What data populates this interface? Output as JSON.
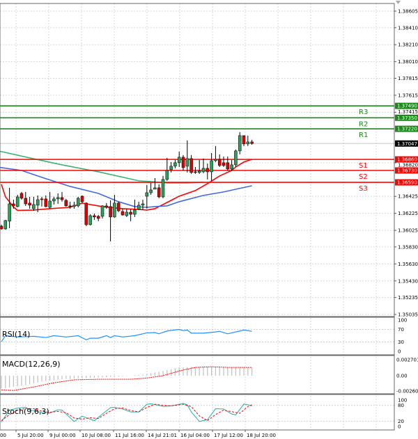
{
  "chart_data": [
    {
      "type": "candlestick",
      "panel": "main",
      "y_ticks": [
        "1.38605",
        "1.38410",
        "1.38210",
        "1.38010",
        "1.37815",
        "1.37615",
        "1.37415",
        "1.36820",
        "1.36425",
        "1.36225",
        "1.36025",
        "1.35830",
        "1.35630",
        "1.35430",
        "1.35235",
        "1.35035"
      ],
      "ylim": [
        1.35035,
        1.38605
      ],
      "x_tick_labels": [
        "00",
        "5 Jul 20:00",
        "9 Jul 00:00",
        "10 Jul 08:00",
        "11 Jul 16:00",
        "14 Jul 21:01",
        "16 Jul 04:00",
        "17 Jul 12:00",
        "18 Jul 20:00"
      ],
      "grid": true,
      "current_price": {
        "label": "1.37047",
        "value": 1.37047,
        "color": "#000000"
      },
      "pivots": [
        {
          "name": "R3",
          "value": 1.3749,
          "label": "1.37490",
          "color": "#1a8a1a"
        },
        {
          "name": "R2",
          "value": 1.3735,
          "label": "1.37350",
          "color": "#1a8a1a"
        },
        {
          "name": "R1",
          "value": 1.3722,
          "label": "1.37220",
          "color": "#1a8a1a"
        },
        {
          "name": "S1",
          "value": 1.3686,
          "label": "1.36860",
          "color": "#ff0000"
        },
        {
          "name": "S2",
          "value": 1.3673,
          "label": "1.36730",
          "color": "#ff0000"
        },
        {
          "name": "S3",
          "value": 1.3659,
          "label": "1.36590",
          "color": "#ff0000"
        }
      ],
      "ohlc": [
        [
          1.36075,
          1.36092,
          1.36034,
          1.36042
        ],
        [
          1.36042,
          1.36149,
          1.36034,
          1.36141
        ],
        [
          1.36133,
          1.36526,
          1.36051,
          1.36337
        ],
        [
          1.36337,
          1.36386,
          1.3628,
          1.36313
        ],
        [
          1.36305,
          1.36444,
          1.36296,
          1.36419
        ],
        [
          1.3646,
          1.36477,
          1.36386,
          1.36403
        ],
        [
          1.36403,
          1.36477,
          1.36313,
          1.36337
        ],
        [
          1.36346,
          1.36419,
          1.3628,
          1.36321
        ],
        [
          1.3628,
          1.36419,
          1.36255,
          1.36329
        ],
        [
          1.36321,
          1.36436,
          1.36239,
          1.36386
        ],
        [
          1.36395,
          1.36419,
          1.36305,
          1.36386
        ],
        [
          1.36395,
          1.36436,
          1.36296,
          1.36305
        ],
        [
          1.36296,
          1.36477,
          1.3628,
          1.3637
        ],
        [
          1.3637,
          1.36419,
          1.36329,
          1.36395
        ],
        [
          1.36395,
          1.3646,
          1.36337,
          1.36411
        ],
        [
          1.36411,
          1.36477,
          1.36362,
          1.36386
        ],
        [
          1.36378,
          1.36395,
          1.36305,
          1.36313
        ],
        [
          1.36313,
          1.36362,
          1.3628,
          1.36305
        ],
        [
          1.36305,
          1.36362,
          1.3628,
          1.36321
        ],
        [
          1.36313,
          1.36419,
          1.36296,
          1.36403
        ],
        [
          1.36427,
          1.36436,
          1.36346,
          1.36362
        ],
        [
          1.36346,
          1.36354,
          1.36075,
          1.36092
        ],
        [
          1.36092,
          1.36214,
          1.36083,
          1.36198
        ],
        [
          1.36198,
          1.36223,
          1.36149,
          1.36182
        ],
        [
          1.3619,
          1.36206,
          1.36133,
          1.36165
        ],
        [
          1.3619,
          1.36321,
          1.36165,
          1.36313
        ],
        [
          1.36313,
          1.36346,
          1.3628,
          1.36296
        ],
        [
          1.36305,
          1.36378,
          1.35895,
          1.36182
        ],
        [
          1.36182,
          1.36444,
          1.36174,
          1.36346
        ],
        [
          1.36346,
          1.36362,
          1.36239,
          1.36255
        ],
        [
          1.36247,
          1.3628,
          1.36198,
          1.36206
        ],
        [
          1.36198,
          1.3628,
          1.36182,
          1.36239
        ],
        [
          1.36239,
          1.3628,
          1.36133,
          1.36214
        ],
        [
          1.36214,
          1.36386,
          1.36182,
          1.36264
        ],
        [
          1.36272,
          1.36362,
          1.36264,
          1.36321
        ],
        [
          1.36321,
          1.36386,
          1.36264,
          1.36337
        ],
        [
          1.36427,
          1.36558,
          1.3628,
          1.36468
        ],
        [
          1.36468,
          1.36583,
          1.36444,
          1.36501
        ],
        [
          1.36509,
          1.3664,
          1.36509,
          1.36526
        ],
        [
          1.36526,
          1.36567,
          1.36403,
          1.36419
        ],
        [
          1.36419,
          1.36665,
          1.36403,
          1.36624
        ],
        [
          1.36624,
          1.36878,
          1.36608,
          1.3673
        ],
        [
          1.36739,
          1.36829,
          1.36706,
          1.3678
        ],
        [
          1.3678,
          1.36853,
          1.36755,
          1.36821
        ],
        [
          1.36821,
          1.36952,
          1.36771,
          1.36886
        ],
        [
          1.36886,
          1.36911,
          1.3673,
          1.36763
        ],
        [
          1.3678,
          1.37083,
          1.36706,
          1.3687
        ],
        [
          1.3687,
          1.36911,
          1.3669,
          1.36706
        ],
        [
          1.36714,
          1.36771,
          1.3669,
          1.36706
        ],
        [
          1.36706,
          1.36853,
          1.3669,
          1.36722
        ],
        [
          1.36714,
          1.3687,
          1.36698,
          1.36755
        ],
        [
          1.36755,
          1.36812,
          1.36624,
          1.36714
        ],
        [
          1.36714,
          1.36935,
          1.36608,
          1.36845
        ],
        [
          1.36845,
          1.37017,
          1.36829,
          1.36861
        ],
        [
          1.36861,
          1.36919,
          1.36771,
          1.36788
        ],
        [
          1.36821,
          1.36894,
          1.36771,
          1.36788
        ],
        [
          1.36821,
          1.36894,
          1.3673,
          1.36747
        ],
        [
          1.36747,
          1.36853,
          1.36722,
          1.36796
        ],
        [
          1.36796,
          1.36976,
          1.36771,
          1.3696
        ],
        [
          1.3696,
          1.37181,
          1.36919,
          1.3714
        ],
        [
          1.3714,
          1.3714,
          1.37017,
          1.37042
        ],
        [
          1.37042,
          1.3714,
          1.37017,
          1.37066
        ],
        [
          1.37066,
          1.37091,
          1.37033,
          1.37047
        ]
      ],
      "moving_averages": [
        {
          "color": "#ff0000",
          "points": [
            [
              0,
              1.36567
            ],
            [
              1,
              1.3642
            ],
            [
              3,
              1.363
            ],
            [
              4,
              1.3626
            ],
            [
              8,
              1.36264
            ],
            [
              12,
              1.3628
            ],
            [
              17,
              1.36296
            ],
            [
              20,
              1.36346
            ],
            [
              21,
              1.36337
            ],
            [
              25,
              1.36305
            ],
            [
              30,
              1.3628
            ],
            [
              34,
              1.36272
            ],
            [
              36,
              1.36264
            ],
            [
              38,
              1.3628
            ],
            [
              39,
              1.36305
            ],
            [
              42,
              1.36378
            ],
            [
              44,
              1.36427
            ],
            [
              48,
              1.36493
            ],
            [
              51,
              1.36575
            ],
            [
              54,
              1.36665
            ],
            [
              57,
              1.3673
            ],
            [
              58,
              1.36771
            ],
            [
              60,
              1.36829
            ],
            [
              62,
              1.36861
            ]
          ]
        },
        {
          "color": "#4169e1",
          "points": [
            [
              -1,
              1.3677
            ],
            [
              0,
              1.36763
            ],
            [
              5,
              1.3673
            ],
            [
              10,
              1.36649
            ],
            [
              17,
              1.36542
            ],
            [
              24,
              1.3646
            ],
            [
              29,
              1.36362
            ],
            [
              33,
              1.36305
            ],
            [
              36,
              1.36296
            ],
            [
              38,
              1.36305
            ],
            [
              41,
              1.36313
            ],
            [
              44,
              1.36362
            ],
            [
              50,
              1.36436
            ],
            [
              55,
              1.36477
            ],
            [
              58,
              1.36509
            ],
            [
              62,
              1.3655
            ]
          ]
        },
        {
          "color": "#3cb371",
          "points": [
            [
              -1,
              1.3696
            ],
            [
              0,
              1.36952
            ],
            [
              7,
              1.36878
            ],
            [
              15,
              1.36796
            ],
            [
              24,
              1.36714
            ],
            [
              31,
              1.3664
            ],
            [
              34,
              1.36608
            ],
            [
              37,
              1.36599
            ],
            [
              41,
              1.36583
            ],
            [
              46,
              1.36583
            ],
            [
              50,
              1.36591
            ]
          ]
        }
      ]
    },
    {
      "type": "line",
      "panel": "rsi",
      "title": "RSI(14)",
      "y_ticks": [
        "100",
        "70",
        "30",
        "0"
      ],
      "ylim": [
        0,
        100
      ],
      "color": "#1e90ff",
      "points": [
        [
          0,
          31
        ],
        [
          1,
          50
        ],
        [
          4,
          46
        ],
        [
          8,
          48
        ],
        [
          11,
          44
        ],
        [
          13,
          50
        ],
        [
          16,
          46
        ],
        [
          19,
          50
        ],
        [
          21,
          37
        ],
        [
          22,
          42
        ],
        [
          24,
          42
        ],
        [
          26,
          50
        ],
        [
          27,
          44
        ],
        [
          28,
          50
        ],
        [
          30,
          46
        ],
        [
          33,
          50
        ],
        [
          36,
          59
        ],
        [
          38,
          60
        ],
        [
          39,
          56
        ],
        [
          41,
          65
        ],
        [
          44,
          70
        ],
        [
          45,
          66
        ],
        [
          46,
          68
        ],
        [
          47,
          58
        ],
        [
          50,
          58
        ],
        [
          53,
          62
        ],
        [
          54,
          64
        ],
        [
          56,
          56
        ],
        [
          59,
          65
        ],
        [
          60,
          68
        ],
        [
          62,
          64
        ]
      ]
    },
    {
      "type": "bar+line",
      "panel": "macd",
      "title": "MACD(12,26,9)",
      "y_ticks": [
        "0.002701",
        "0.00",
        "-0.002608"
      ],
      "ylim": [
        -0.002608,
        0.002701
      ],
      "histogram_color": "#c0c0c0",
      "signal_color": "#ff0000",
      "histogram": [
        [
          0,
          -0.0022
        ],
        [
          3,
          -0.0019
        ],
        [
          6,
          -0.0016
        ],
        [
          10,
          -0.001
        ],
        [
          15,
          -0.0006
        ],
        [
          20,
          -0.0004
        ],
        [
          25,
          -0.0003
        ],
        [
          30,
          -0.0001
        ],
        [
          35,
          0.0002
        ],
        [
          40,
          0.0008
        ],
        [
          44,
          0.0014
        ],
        [
          48,
          0.0015
        ],
        [
          52,
          0.0015
        ],
        [
          56,
          0.0014
        ],
        [
          62,
          0.0014
        ]
      ],
      "signal": [
        [
          0,
          -0.0024
        ],
        [
          3,
          -0.0025
        ],
        [
          8,
          -0.0019
        ],
        [
          13,
          -0.0012
        ],
        [
          18,
          -0.0007
        ],
        [
          24,
          -0.0006
        ],
        [
          32,
          -0.0006
        ],
        [
          36,
          -0.0004
        ],
        [
          40,
          0.0
        ],
        [
          44,
          0.0008
        ],
        [
          48,
          0.0014
        ],
        [
          52,
          0.0015
        ],
        [
          56,
          0.0014
        ],
        [
          62,
          0.0014
        ]
      ]
    },
    {
      "type": "line",
      "panel": "stoch",
      "title": "Stoch(9,6,3)",
      "y_ticks": [
        "100",
        "80",
        "20",
        "0"
      ],
      "ylim": [
        0,
        100
      ],
      "series": [
        {
          "color": "#20b2aa",
          "points": [
            [
              0,
              17
            ],
            [
              2,
              62
            ],
            [
              4,
              69
            ],
            [
              6,
              73
            ],
            [
              7,
              62
            ],
            [
              10,
              53
            ],
            [
              12,
              51
            ],
            [
              14,
              63
            ],
            [
              15,
              62
            ],
            [
              18,
              19
            ],
            [
              20,
              39
            ],
            [
              21,
              33
            ],
            [
              23,
              22
            ],
            [
              25,
              47
            ],
            [
              27,
              71
            ],
            [
              28,
              73
            ],
            [
              30,
              66
            ],
            [
              32,
              55
            ],
            [
              34,
              55
            ],
            [
              36,
              84
            ],
            [
              37,
              86
            ],
            [
              40,
              76
            ],
            [
              42,
              78
            ],
            [
              45,
              87
            ],
            [
              46,
              82
            ],
            [
              47,
              55
            ],
            [
              49,
              19
            ],
            [
              51,
              26
            ],
            [
              53,
              67
            ],
            [
              55,
              66
            ],
            [
              57,
              47
            ],
            [
              58,
              44
            ],
            [
              60,
              85
            ],
            [
              61,
              82
            ],
            [
              62,
              78
            ]
          ]
        },
        {
          "color": "#ff0000",
          "points": [
            [
              0,
              22
            ],
            [
              2,
              45
            ],
            [
              4,
              62
            ],
            [
              6,
              68
            ],
            [
              8,
              67
            ],
            [
              10,
              58
            ],
            [
              12,
              54
            ],
            [
              14,
              57
            ],
            [
              16,
              52
            ],
            [
              18,
              32
            ],
            [
              20,
              28
            ],
            [
              22,
              33
            ],
            [
              24,
              30
            ],
            [
              26,
              50
            ],
            [
              28,
              67
            ],
            [
              30,
              70
            ],
            [
              32,
              60
            ],
            [
              34,
              55
            ],
            [
              36,
              72
            ],
            [
              38,
              84
            ],
            [
              40,
              80
            ],
            [
              42,
              78
            ],
            [
              45,
              84
            ],
            [
              47,
              75
            ],
            [
              49,
              40
            ],
            [
              51,
              22
            ],
            [
              53,
              45
            ],
            [
              55,
              62
            ],
            [
              57,
              56
            ],
            [
              59,
              50
            ],
            [
              61,
              75
            ],
            [
              62,
              82
            ]
          ]
        }
      ]
    }
  ]
}
